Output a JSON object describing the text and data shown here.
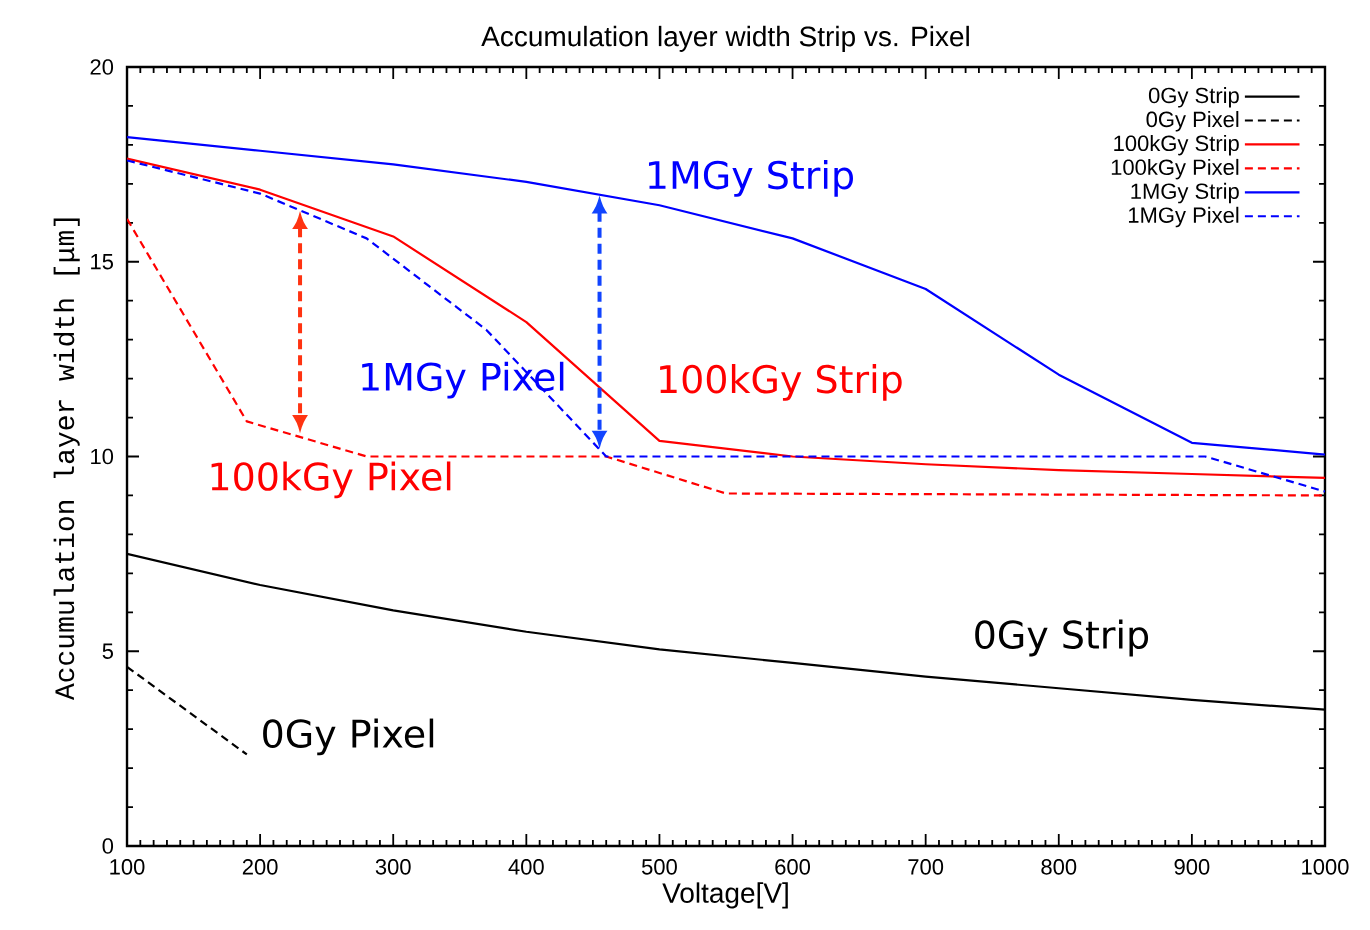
{
  "chart_data": {
    "type": "line",
    "title": "Accumulation layer width Strip vs. Pixel",
    "xlabel": "Voltage[V]",
    "ylabel": "Accumulation layer width [μm]",
    "xlim": [
      100,
      1000
    ],
    "xticks": [
      100,
      200,
      300,
      400,
      500,
      600,
      700,
      800,
      900,
      1000
    ],
    "ylim": [
      0,
      20
    ],
    "yticks": [
      0,
      5,
      10,
      15,
      20
    ],
    "grid": false,
    "legend": "top right",
    "marker": "none",
    "series": [
      {
        "name": "0Gy Strip",
        "color": "#000000",
        "line_style": "solid",
        "x": [
          100,
          200,
          300,
          400,
          500,
          600,
          700,
          800,
          900,
          1000
        ],
        "values": [
          7.5,
          6.7,
          6.05,
          5.5,
          5.05,
          4.7,
          4.35,
          4.05,
          3.75,
          3.5
        ]
      },
      {
        "name": "0Gy Pixel",
        "color": "#000000",
        "line_style": "dashed",
        "x": [
          100,
          190
        ],
        "values": [
          4.6,
          2.35
        ]
      },
      {
        "name": "100kGy Strip",
        "color": "#ff0000",
        "line_style": "solid",
        "x": [
          100,
          200,
          300,
          400,
          500,
          600,
          700,
          800,
          900,
          1000
        ],
        "values": [
          17.65,
          16.85,
          15.65,
          13.45,
          10.4,
          10.0,
          9.8,
          9.65,
          9.55,
          9.45
        ]
      },
      {
        "name": "100kGy Pixel",
        "color": "#ff0000",
        "line_style": "dashed",
        "x": [
          100,
          190,
          280,
          460,
          550,
          1000
        ],
        "values": [
          16.1,
          10.9,
          10.0,
          10.0,
          9.05,
          9.0
        ]
      },
      {
        "name": "1MGy Strip",
        "color": "#0000ff",
        "line_style": "solid",
        "x": [
          100,
          200,
          300,
          400,
          500,
          600,
          700,
          800,
          900,
          1000
        ],
        "values": [
          18.2,
          17.85,
          17.5,
          17.05,
          16.45,
          15.6,
          14.3,
          12.1,
          10.35,
          10.05
        ]
      },
      {
        "name": "1MGy Pixel",
        "color": "#0000ff",
        "line_style": "dashed",
        "x": [
          100,
          200,
          280,
          370,
          460,
          910,
          1000
        ],
        "values": [
          17.6,
          16.75,
          15.6,
          13.25,
          10.0,
          10.0,
          9.1
        ]
      }
    ],
    "annotations": [
      "0Gy Strip",
      "0Gy Pixel",
      "100kGy Strip",
      "100kGy Pixel",
      "1MGy Strip",
      "1MGy Pixel"
    ]
  }
}
